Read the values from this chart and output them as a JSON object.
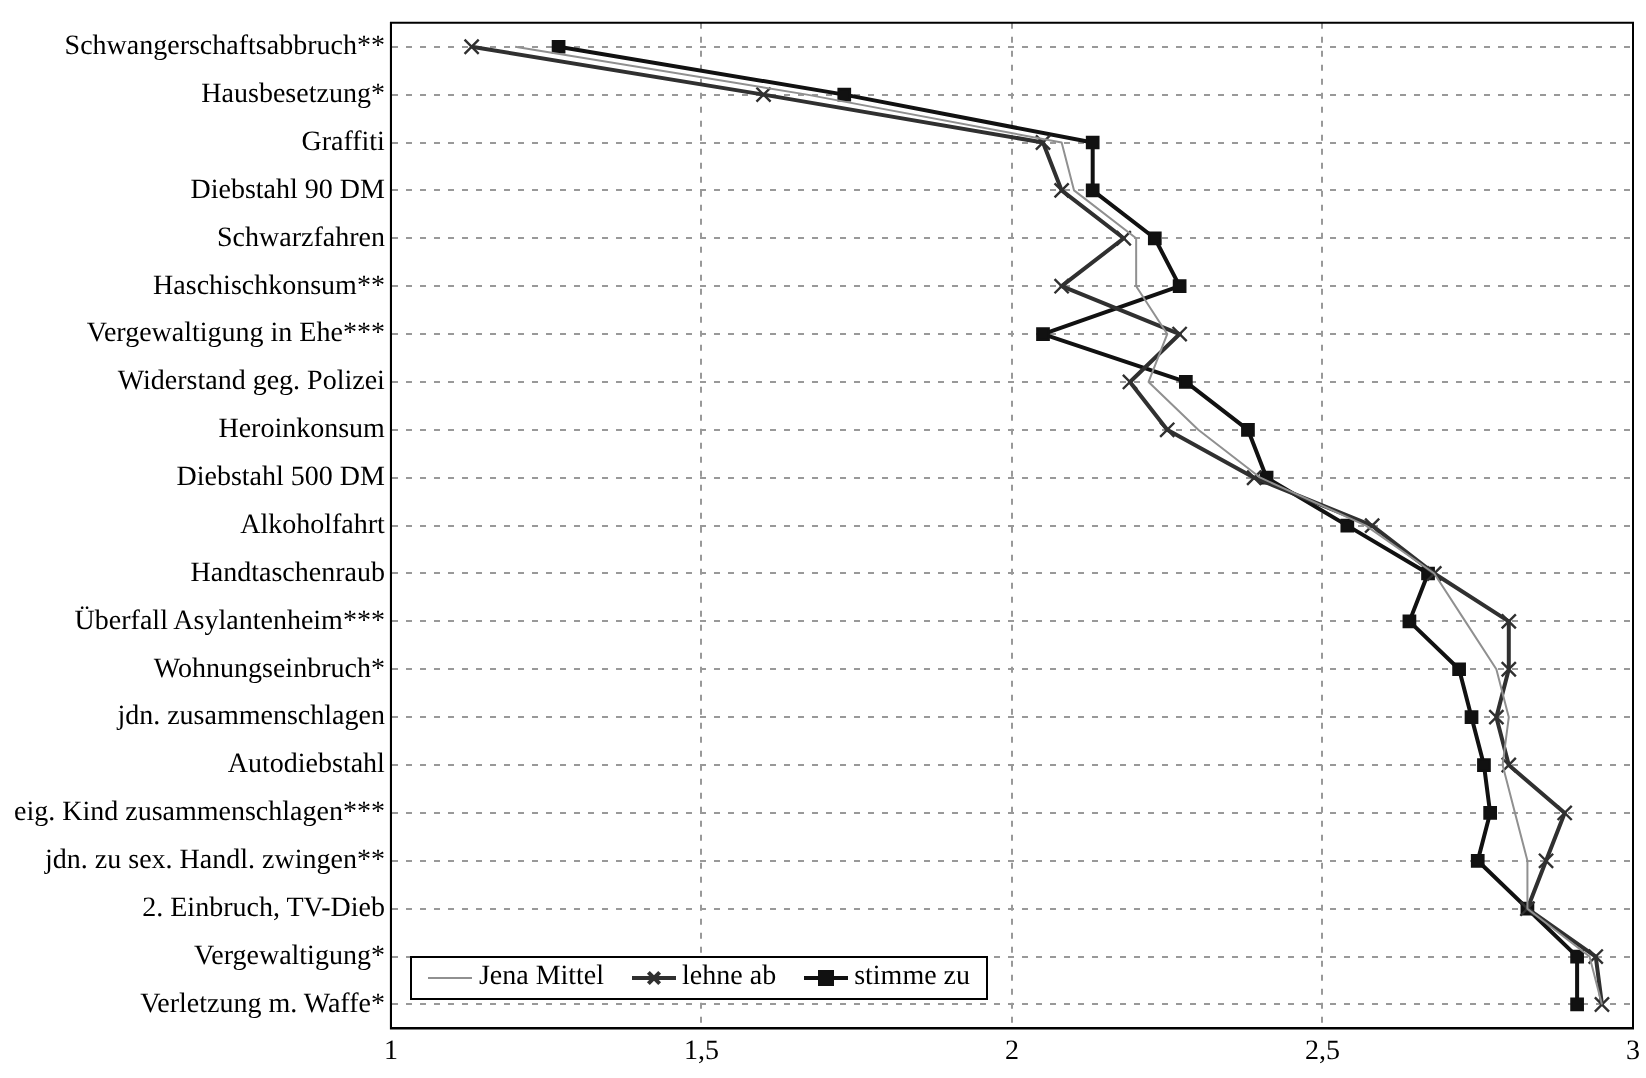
{
  "chart_data": {
    "type": "line",
    "orientation": "horizontal",
    "categories": [
      "Schwangerschaftsabbruch**",
      "Hausbesetzung*",
      "Graffiti",
      "Diebstahl 90 DM",
      "Schwarzfahren",
      "Haschischkonsum**",
      "Vergewaltigung in Ehe***",
      "Widerstand geg. Polizei",
      "Heroinkonsum",
      "Diebstahl 500 DM",
      "Alkoholfahrt",
      "Handtaschenraub",
      "Überfall Asylantenheim***",
      "Wohnungseinbruch*",
      "jdn. zusammenschlagen",
      "Autodiebstahl",
      "eig. Kind zusammenschlagen***",
      "jdn. zu sex. Handl. zwingen**",
      "2. Einbruch, TV-Dieb",
      "Vergewaltigung*",
      "Verletzung m. Waffe*"
    ],
    "series": [
      {
        "name": "Jena Mittel",
        "color": "#909090",
        "marker": "none",
        "values": [
          1.2,
          1.67,
          2.08,
          2.1,
          2.2,
          2.2,
          2.25,
          2.22,
          2.3,
          2.4,
          2.57,
          2.68,
          2.73,
          2.78,
          2.8,
          2.79,
          2.81,
          2.83,
          2.83,
          2.93,
          2.95
        ]
      },
      {
        "name": "lehne ab",
        "color": "#303030",
        "marker": "cross",
        "values": [
          1.13,
          1.6,
          2.05,
          2.08,
          2.18,
          2.08,
          2.27,
          2.19,
          2.25,
          2.39,
          2.58,
          2.68,
          2.8,
          2.8,
          2.78,
          2.8,
          2.89,
          2.86,
          2.83,
          2.94,
          2.95
        ]
      },
      {
        "name": "stimme zu",
        "color": "#111111",
        "marker": "square",
        "values": [
          1.27,
          1.73,
          2.13,
          2.13,
          2.23,
          2.27,
          2.05,
          2.28,
          2.38,
          2.41,
          2.54,
          2.67,
          2.64,
          2.72,
          2.74,
          2.76,
          2.77,
          2.75,
          2.83,
          2.91,
          2.91
        ]
      }
    ],
    "xlim": [
      1,
      3
    ],
    "xticks": [
      1,
      {
        "value": 1.5,
        "label": "1,5"
      },
      2,
      {
        "value": 2.5,
        "label": "2,5"
      },
      3
    ],
    "grid": true,
    "legend": "bottom left",
    "line_style": "solid"
  }
}
